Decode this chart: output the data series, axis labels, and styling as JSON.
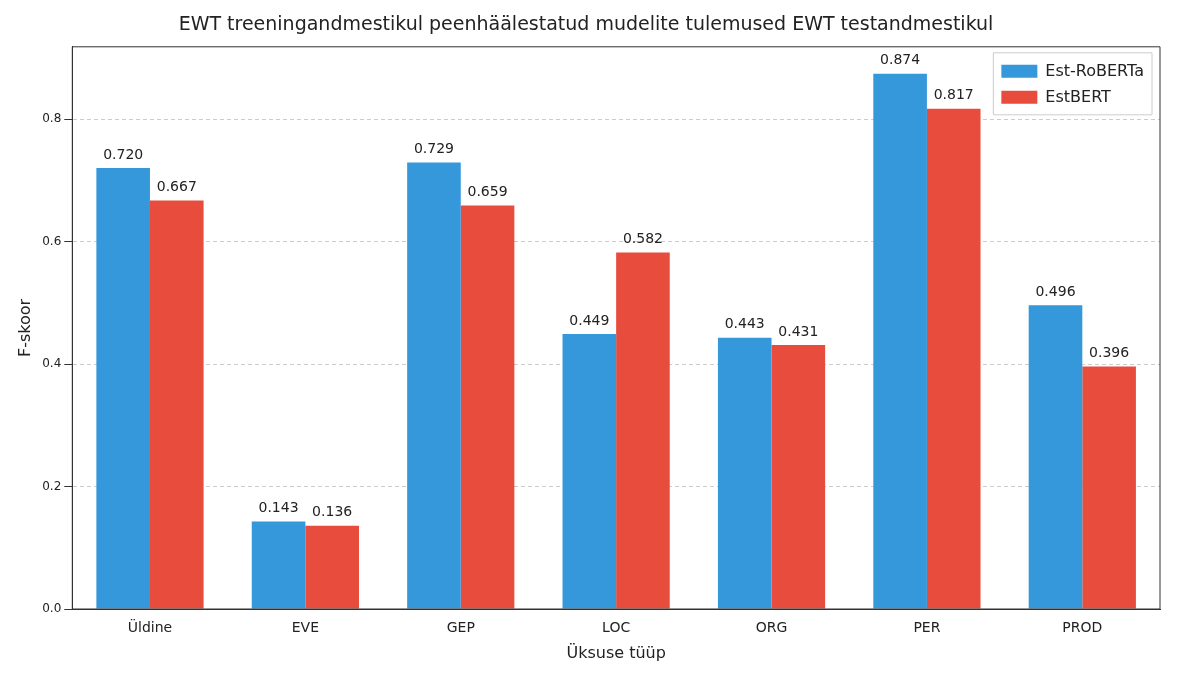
{
  "chart_data": {
    "type": "bar",
    "title": "EWT treeningandmestikul peenhäälestatud mudelite tulemused EWT testandmestikul",
    "xlabel": "Üksuse tüüp",
    "ylabel": "F-skoor",
    "categories": [
      "Üldine",
      "EVE",
      "GEP",
      "LOC",
      "ORG",
      "PER",
      "PROD"
    ],
    "series": [
      {
        "name": "Est-RoBERTa",
        "color": "#3498db",
        "values": [
          0.72,
          0.143,
          0.729,
          0.449,
          0.443,
          0.874,
          0.496
        ],
        "value_labels": [
          "0.720",
          "0.143",
          "0.729",
          "0.449",
          "0.443",
          "0.874",
          "0.496"
        ]
      },
      {
        "name": "EstBERT",
        "color": "#e74c3c",
        "values": [
          0.667,
          0.136,
          0.659,
          0.582,
          0.431,
          0.817,
          0.396
        ],
        "value_labels": [
          "0.667",
          "0.136",
          "0.659",
          "0.582",
          "0.431",
          "0.817",
          "0.396"
        ]
      }
    ],
    "ylim": [
      0,
      0.918
    ],
    "yticks": [
      {
        "value": 0,
        "label": "0.0"
      },
      0.2,
      0.4,
      0.6,
      0.8
    ],
    "grid": "y",
    "legend": "top right"
  }
}
